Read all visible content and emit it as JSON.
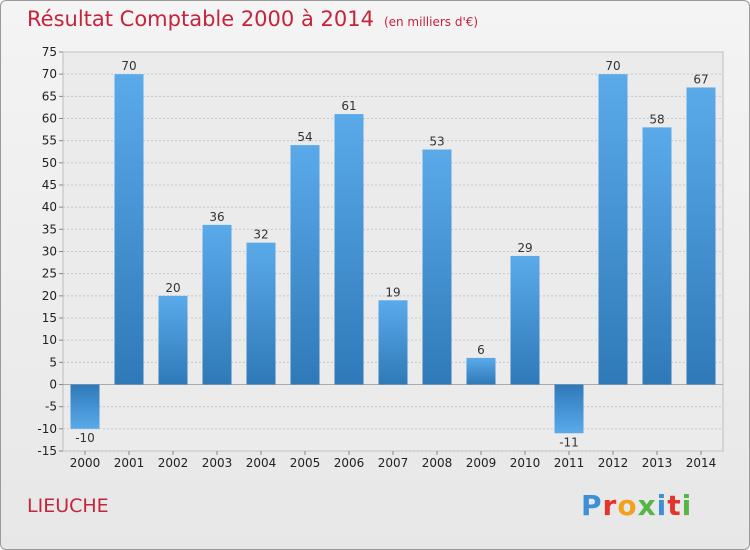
{
  "title": "Résultat Comptable 2000 à 2014",
  "subtitle": "(en milliers d'€)",
  "commune": "LIEUCHE",
  "logo": {
    "text": "Proxiti",
    "letters": [
      "P",
      "r",
      "o",
      "x",
      "i",
      "t",
      "i"
    ]
  },
  "colors": {
    "title": "#c4243c",
    "bar_light": "#5aaaea",
    "bar_dark": "#2f79b8",
    "grid": "#c8c8c8"
  },
  "chart_data": {
    "type": "bar",
    "categories": [
      "2000",
      "2001",
      "2002",
      "2003",
      "2004",
      "2005",
      "2006",
      "2007",
      "2008",
      "2009",
      "2010",
      "2011",
      "2012",
      "2013",
      "2014"
    ],
    "values": [
      -10,
      70,
      20,
      36,
      32,
      54,
      61,
      19,
      53,
      6,
      29,
      -11,
      70,
      58,
      67
    ],
    "data_labels": [
      "-10",
      "70",
      "20",
      "36",
      "32",
      "54",
      "61",
      "19",
      "53",
      "6",
      "29",
      "-11",
      "70",
      "58",
      "67"
    ],
    "ylim": [
      -15,
      75
    ],
    "yticks": [
      -15,
      -10,
      -5,
      0,
      5,
      10,
      15,
      20,
      25,
      30,
      35,
      40,
      45,
      50,
      55,
      60,
      65,
      70,
      75
    ],
    "ytick_labels": [
      "-15",
      "-10",
      "-5",
      "0",
      "5",
      "10",
      "15",
      "20",
      "25",
      "30",
      "35",
      "40",
      "45",
      "50",
      "55",
      "60",
      "65",
      "70",
      "75"
    ],
    "xlabel": "",
    "ylabel": "",
    "grid": true,
    "legend": "none"
  }
}
